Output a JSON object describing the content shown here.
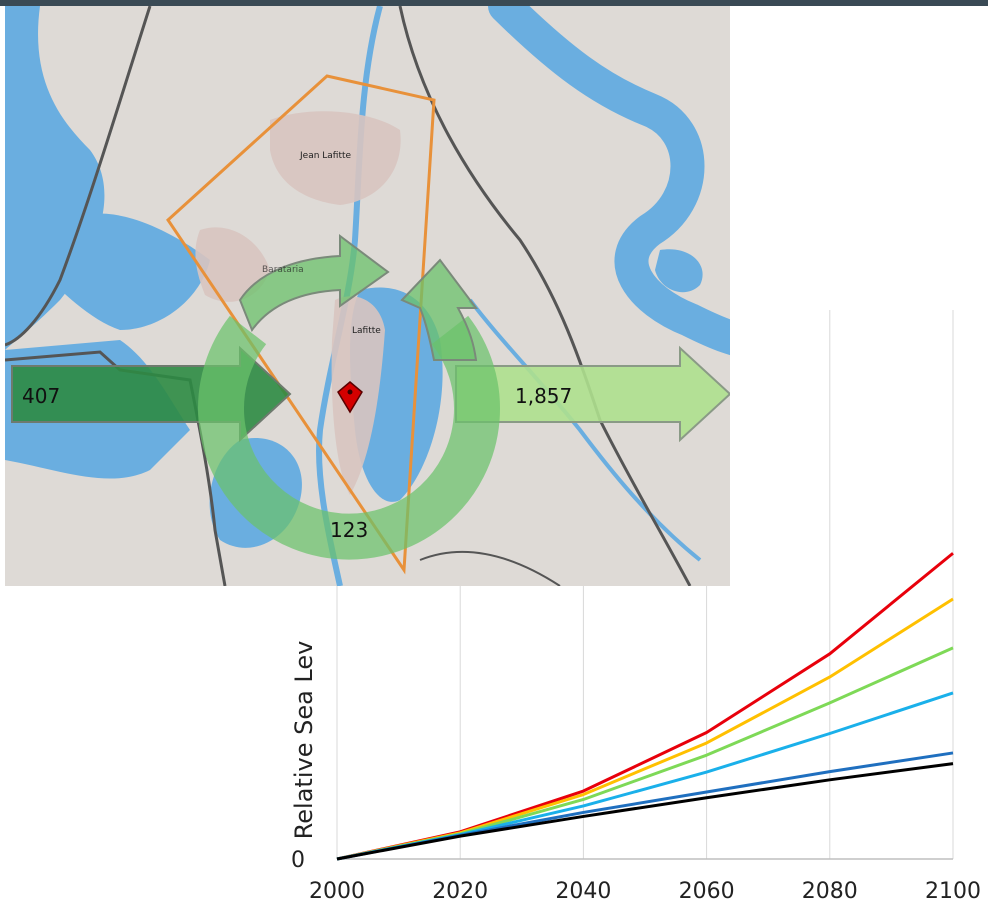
{
  "chart_data": {
    "type": "line",
    "xlabel": "",
    "ylabel": "Relative Sea Lev",
    "x": [
      2000,
      2020,
      2040,
      2060,
      2080,
      2100
    ],
    "x_ticks": [
      "2000",
      "2020",
      "2040",
      "2060",
      "2080",
      "2100"
    ],
    "xlim": [
      2000,
      2100
    ],
    "y_ticks": [
      "0"
    ],
    "ylim": [
      0,
      100
    ],
    "grid": true,
    "series": [
      {
        "color": "#e8000b",
        "values": [
          0,
          10.9,
          27.3,
          50.8,
          82.4,
          122.8
        ]
      },
      {
        "color": "#ffc000",
        "values": [
          0,
          10.5,
          25.9,
          46.6,
          73.1,
          104.4
        ]
      },
      {
        "color": "#7ed957",
        "values": [
          0,
          10.1,
          23.9,
          41.7,
          62.7,
          84.8
        ]
      },
      {
        "color": "#1ab0ea",
        "values": [
          0,
          9.8,
          21.3,
          34.9,
          50.4,
          66.7
        ]
      },
      {
        "color": "#1f6fbf",
        "values": [
          0,
          9.5,
          18.7,
          26.9,
          35.1,
          42.6
        ]
      },
      {
        "color": "#000000",
        "values": [
          0,
          9.2,
          17.1,
          24.6,
          31.8,
          38.3
        ]
      }
    ]
  },
  "map_inset": {
    "place_labels": [
      "Jean Lafitte",
      "Barataria",
      "Lafitte"
    ],
    "inflow": "407",
    "outflow": "1,857",
    "cycle": "123"
  },
  "colors": {
    "water": "#6aaee0",
    "land": "#dedad6",
    "urban": "#d8c4c0",
    "boundary": "#e8913a",
    "roads": "#555555",
    "flow_dark": "#2e8b44",
    "flow_light": "#aee08e",
    "cycle": "#6bc26b",
    "marker": "#d40000"
  }
}
